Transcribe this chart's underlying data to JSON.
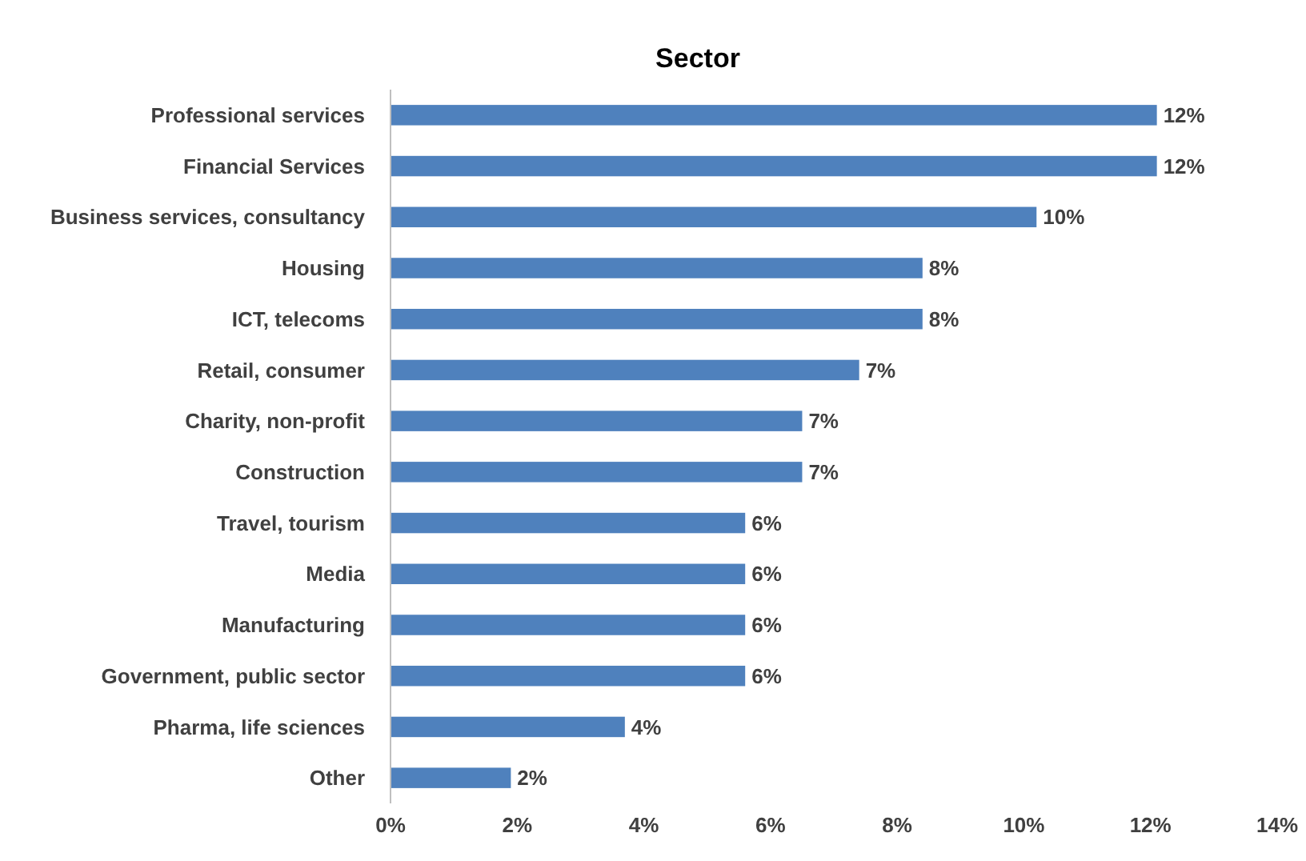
{
  "chart_data": {
    "type": "bar",
    "orientation": "horizontal",
    "title": "Sector",
    "categories": [
      "Professional services ",
      "Financial Services",
      "Business services, consultancy",
      "Housing",
      "ICT, telecoms",
      "Retail, consumer",
      "Charity, non-profit",
      "Construction",
      "Travel, tourism",
      "Media",
      "Manufacturing",
      "Government, public sector",
      "Pharma, life sciences",
      "Other"
    ],
    "values": [
      12.1,
      12.1,
      10.2,
      8.4,
      8.4,
      7.4,
      6.5,
      6.5,
      5.6,
      5.6,
      5.6,
      5.6,
      3.7,
      1.9
    ],
    "value_labels": [
      "12%",
      "12%",
      "10%",
      "8%",
      "8%",
      "7%",
      "7%",
      "7%",
      "6%",
      "6%",
      "6%",
      "6%",
      "4%",
      "2%"
    ],
    "color": "#4f81bd",
    "xlim": [
      0,
      14
    ],
    "xticks": [
      {
        "value": 0,
        "label": "0%"
      },
      {
        "value": 2,
        "label": "2%"
      },
      {
        "value": 4,
        "label": "4%"
      },
      {
        "value": 6,
        "label": "6%"
      },
      {
        "value": 8,
        "label": "8%"
      },
      {
        "value": 10,
        "label": "10%"
      },
      {
        "value": 12,
        "label": "12%"
      },
      {
        "value": 14,
        "label": "14%"
      }
    ],
    "grid": false
  }
}
